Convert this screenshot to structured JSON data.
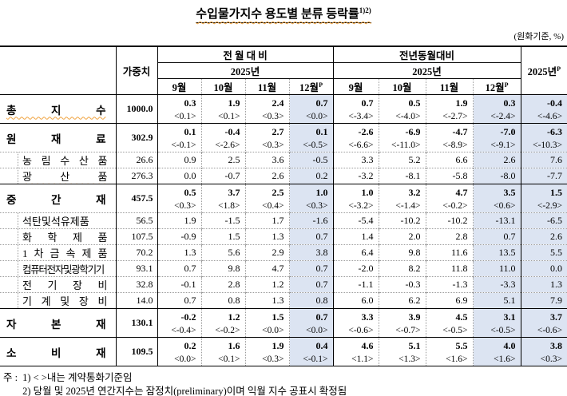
{
  "title": {
    "text": "수입물가지수 용도별 분류 등락률",
    "sup": "1)2)"
  },
  "unit_note": "(원화기준, %)",
  "table": {
    "weight_header": "가중치",
    "annual_header": "2025년",
    "prov_sup": "P",
    "groups": [
      {
        "label": "전 월 대 비",
        "year": "2025년"
      },
      {
        "label": "전년동월대비",
        "year": "2025년"
      }
    ],
    "months": [
      "9월",
      "10월",
      "11월",
      "12월"
    ],
    "rows": [
      {
        "label": "총 지 수",
        "type": "main",
        "squiggle": true,
        "weight": "1000.0",
        "mom": [
          "0.3",
          "1.9",
          "2.4",
          "0.7"
        ],
        "mom_c": [
          "<0.1>",
          "<0.1>",
          "<0.3>",
          "<0.0>"
        ],
        "yoy": [
          "0.7",
          "0.5",
          "1.9",
          "0.3"
        ],
        "yoy_c": [
          "<-3.4>",
          "<-4.0>",
          "<-2.7>",
          "<-2.4>"
        ],
        "annual": "-0.4",
        "annual_c": "<-4.6>"
      },
      {
        "label": "원 재 료",
        "type": "main",
        "squiggle": false,
        "weight": "302.9",
        "mom": [
          "0.1",
          "-0.4",
          "2.7",
          "0.1"
        ],
        "mom_c": [
          "<-0.1>",
          "<-2.6>",
          "<0.3>",
          "<-0.5>"
        ],
        "yoy": [
          "-2.6",
          "-6.9",
          "-4.7",
          "-7.0"
        ],
        "yoy_c": [
          "<-6.6>",
          "<-11.0>",
          "<-8.9>",
          "<-9.1>"
        ],
        "annual": "-6.3",
        "annual_c": "<-10.3>"
      },
      {
        "label": "농 림 수 산 품",
        "type": "sub",
        "squiggle": false,
        "weight": "26.6",
        "mom": [
          "0.9",
          "2.5",
          "3.6",
          "-0.5"
        ],
        "yoy": [
          "3.3",
          "5.2",
          "6.6",
          "2.6"
        ],
        "annual": "7.6"
      },
      {
        "label": "광 산 품",
        "type": "sub",
        "squiggle": true,
        "weight": "276.3",
        "mom": [
          "0.0",
          "-0.7",
          "2.6",
          "0.2"
        ],
        "yoy": [
          "-3.2",
          "-8.1",
          "-5.8",
          "-8.0"
        ],
        "annual": "-7.7"
      },
      {
        "label": "중 간 재",
        "type": "main",
        "squiggle": false,
        "weight": "457.5",
        "mom": [
          "0.5",
          "3.7",
          "2.5",
          "1.0"
        ],
        "mom_c": [
          "<0.3>",
          "<1.8>",
          "<0.4>",
          "<0.3>"
        ],
        "yoy": [
          "1.0",
          "3.2",
          "4.7",
          "3.5"
        ],
        "yoy_c": [
          "<-3.2>",
          "<-1.4>",
          "<-0.2>",
          "<0.6>"
        ],
        "annual": "1.5",
        "annual_c": "<-2.9>"
      },
      {
        "label": "석탄및석유제품",
        "type": "sub",
        "squiggle": true,
        "weight": "56.5",
        "mom": [
          "1.9",
          "-1.5",
          "1.7",
          "-1.6"
        ],
        "yoy": [
          "-5.4",
          "-10.2",
          "-10.2",
          "-13.1"
        ],
        "annual": "-6.5"
      },
      {
        "label": "화 학 제 품",
        "type": "sub",
        "squiggle": false,
        "weight": "107.5",
        "mom": [
          "-0.9",
          "1.5",
          "1.3",
          "0.7"
        ],
        "yoy": [
          "1.4",
          "2.0",
          "2.8",
          "0.7"
        ],
        "annual": "2.6"
      },
      {
        "label": "1 차 금 속 제 품",
        "type": "sub",
        "squiggle": true,
        "weight": "70.2",
        "mom": [
          "1.3",
          "5.6",
          "2.9",
          "3.8"
        ],
        "yoy": [
          "6.4",
          "9.8",
          "11.6",
          "13.5"
        ],
        "annual": "5.5"
      },
      {
        "label": "컴퓨터전자및광학기기",
        "type": "sub",
        "squiggle": true,
        "condensed": true,
        "weight": "93.1",
        "mom": [
          "0.7",
          "9.8",
          "4.7",
          "0.7"
        ],
        "yoy": [
          "-2.0",
          "8.2",
          "11.8",
          "11.0"
        ],
        "annual": "0.0"
      },
      {
        "label": "전 기 장 비",
        "type": "sub",
        "squiggle": false,
        "weight": "32.8",
        "mom": [
          "-0.1",
          "2.8",
          "1.2",
          "0.7"
        ],
        "yoy": [
          "-1.1",
          "-0.3",
          "-1.3",
          "-3.3"
        ],
        "annual": "1.3"
      },
      {
        "label": "기 계 및 장 비",
        "type": "sub",
        "squiggle": true,
        "weight": "14.0",
        "mom": [
          "0.7",
          "0.8",
          "1.3",
          "0.8"
        ],
        "yoy": [
          "6.0",
          "6.2",
          "6.9",
          "5.1"
        ],
        "annual": "7.9"
      },
      {
        "label": "자 본 재",
        "type": "main",
        "squiggle": false,
        "weight": "130.1",
        "mom": [
          "-0.2",
          "1.2",
          "1.5",
          "0.7"
        ],
        "mom_c": [
          "<-0.4>",
          "<-0.2>",
          "<0.0>",
          "<0.0>"
        ],
        "yoy": [
          "3.3",
          "3.9",
          "4.5",
          "3.1"
        ],
        "yoy_c": [
          "<-0.6>",
          "<-0.7>",
          "<-0.5>",
          "<-0.5>"
        ],
        "annual": "3.7",
        "annual_c": "<-0.6>"
      },
      {
        "label": "소 비 재",
        "type": "main",
        "squiggle": false,
        "weight": "109.5",
        "mom": [
          "0.2",
          "1.6",
          "1.9",
          "0.4"
        ],
        "mom_c": [
          "<0.0>",
          "<0.1>",
          "<0.3>",
          "<-0.1>"
        ],
        "yoy": [
          "4.6",
          "5.1",
          "5.5",
          "4.0"
        ],
        "yoy_c": [
          "<1.1>",
          "<1.3>",
          "<1.6>",
          "<1.6>"
        ],
        "annual": "3.8",
        "annual_c": "<0.3>"
      }
    ]
  },
  "notes": {
    "prefix": "주 :",
    "items": [
      "1) < >내는 계약통화기준임",
      "2) 당월 및 2025년 연간지수는 잠정치(preliminary)이며 익월 지수 공표시 확정됨"
    ]
  },
  "colors": {
    "highlight": "#dce4f2",
    "squiggle": "#f0a23c",
    "border": "#000000"
  }
}
